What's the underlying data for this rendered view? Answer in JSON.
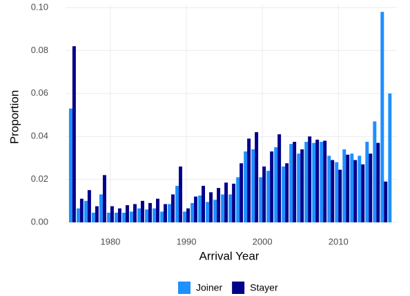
{
  "chart_data": {
    "type": "bar",
    "x_label": "Arrival Year",
    "y_label": "Proportion",
    "x": [
      1975,
      1976,
      1977,
      1978,
      1979,
      1980,
      1981,
      1982,
      1983,
      1984,
      1985,
      1986,
      1987,
      1988,
      1989,
      1990,
      1991,
      1992,
      1993,
      1994,
      1995,
      1996,
      1997,
      1998,
      1999,
      2000,
      2001,
      2002,
      2003,
      2004,
      2005,
      2006,
      2007,
      2008,
      2009,
      2010,
      2011,
      2012,
      2013,
      2014,
      2015,
      2016,
      2017
    ],
    "series": [
      {
        "name": "Joiner",
        "color": "#1e90ff",
        "values": [
          0.053,
          0.0065,
          0.01,
          0.0045,
          0.013,
          0.0045,
          0.0045,
          0.0045,
          0.005,
          0.0065,
          0.006,
          0.0065,
          0.005,
          0.0085,
          0.017,
          0.005,
          0.009,
          0.0125,
          0.0095,
          0.0105,
          0.013,
          0.013,
          0.021,
          0.033,
          0.034,
          0.021,
          0.024,
          0.035,
          0.026,
          0.0365,
          0.032,
          0.0375,
          0.037,
          0.0375,
          0.031,
          0.028,
          0.034,
          0.032,
          0.031,
          0.0375,
          0.047,
          0.098,
          0.06
        ]
      },
      {
        "name": "Stayer",
        "color": "#00008b",
        "values": [
          0.082,
          0.011,
          0.015,
          0.0075,
          0.022,
          0.0075,
          0.0065,
          0.008,
          0.0085,
          0.01,
          0.009,
          0.011,
          0.0085,
          0.013,
          0.026,
          0.0065,
          0.012,
          0.017,
          0.014,
          0.016,
          0.0185,
          0.018,
          0.0275,
          0.039,
          0.042,
          0.026,
          0.033,
          0.041,
          0.0275,
          0.0375,
          0.034,
          0.04,
          0.0385,
          0.038,
          0.029,
          0.0245,
          0.0315,
          0.029,
          0.027,
          0.032,
          0.037,
          0.019,
          null
        ]
      }
    ],
    "xlim": [
      1974.1,
      2017.7
    ],
    "xticks": [
      1980,
      1990,
      2000,
      2010
    ],
    "ylim": [
      0,
      0.1
    ],
    "yticks": [
      {
        "value": 0,
        "label": "0.00"
      },
      {
        "value": 0.02,
        "label": "0.02"
      },
      {
        "value": 0.04,
        "label": "0.04"
      },
      {
        "value": 0.06,
        "label": "0.06"
      },
      {
        "value": 0.08,
        "label": "0.08"
      },
      {
        "value": 0.1,
        "label": "0.10"
      }
    ],
    "grid": true,
    "legend": "bottom"
  }
}
